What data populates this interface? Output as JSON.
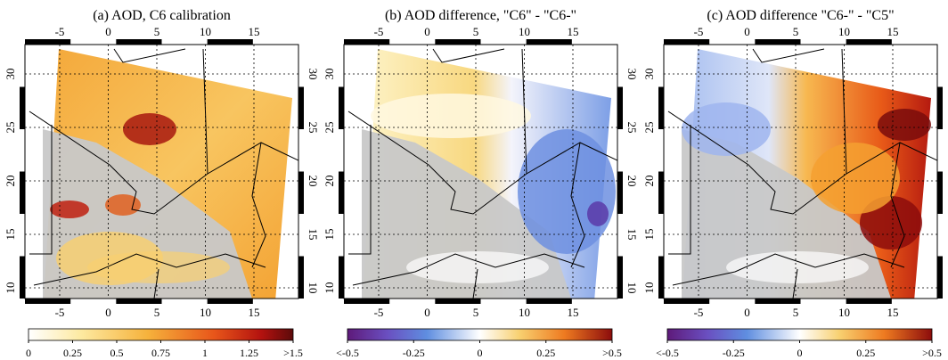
{
  "lon_ticks": [
    "-5",
    "0",
    "5",
    "10",
    "15"
  ],
  "lat_ticks": [
    "10",
    "15",
    "20",
    "25",
    "30"
  ],
  "panels": [
    {
      "title": "(a) AOD, C6 calibration",
      "colorbar_labels": [
        "0",
        "0.25",
        "0.5",
        "0.75",
        "1",
        "1.25",
        ">1.5"
      ]
    },
    {
      "title": "(b) AOD difference, \"C6\" - \"C6-\"",
      "colorbar_labels": [
        "<-0.5",
        "-0.25",
        "0",
        "0.25",
        ">0.5"
      ]
    },
    {
      "title": "(c) AOD difference \"C6-\" - \"C5\"",
      "colorbar_labels": [
        "<-0.5",
        "-0.25",
        "0",
        "0.25",
        ">0.5"
      ]
    }
  ]
}
